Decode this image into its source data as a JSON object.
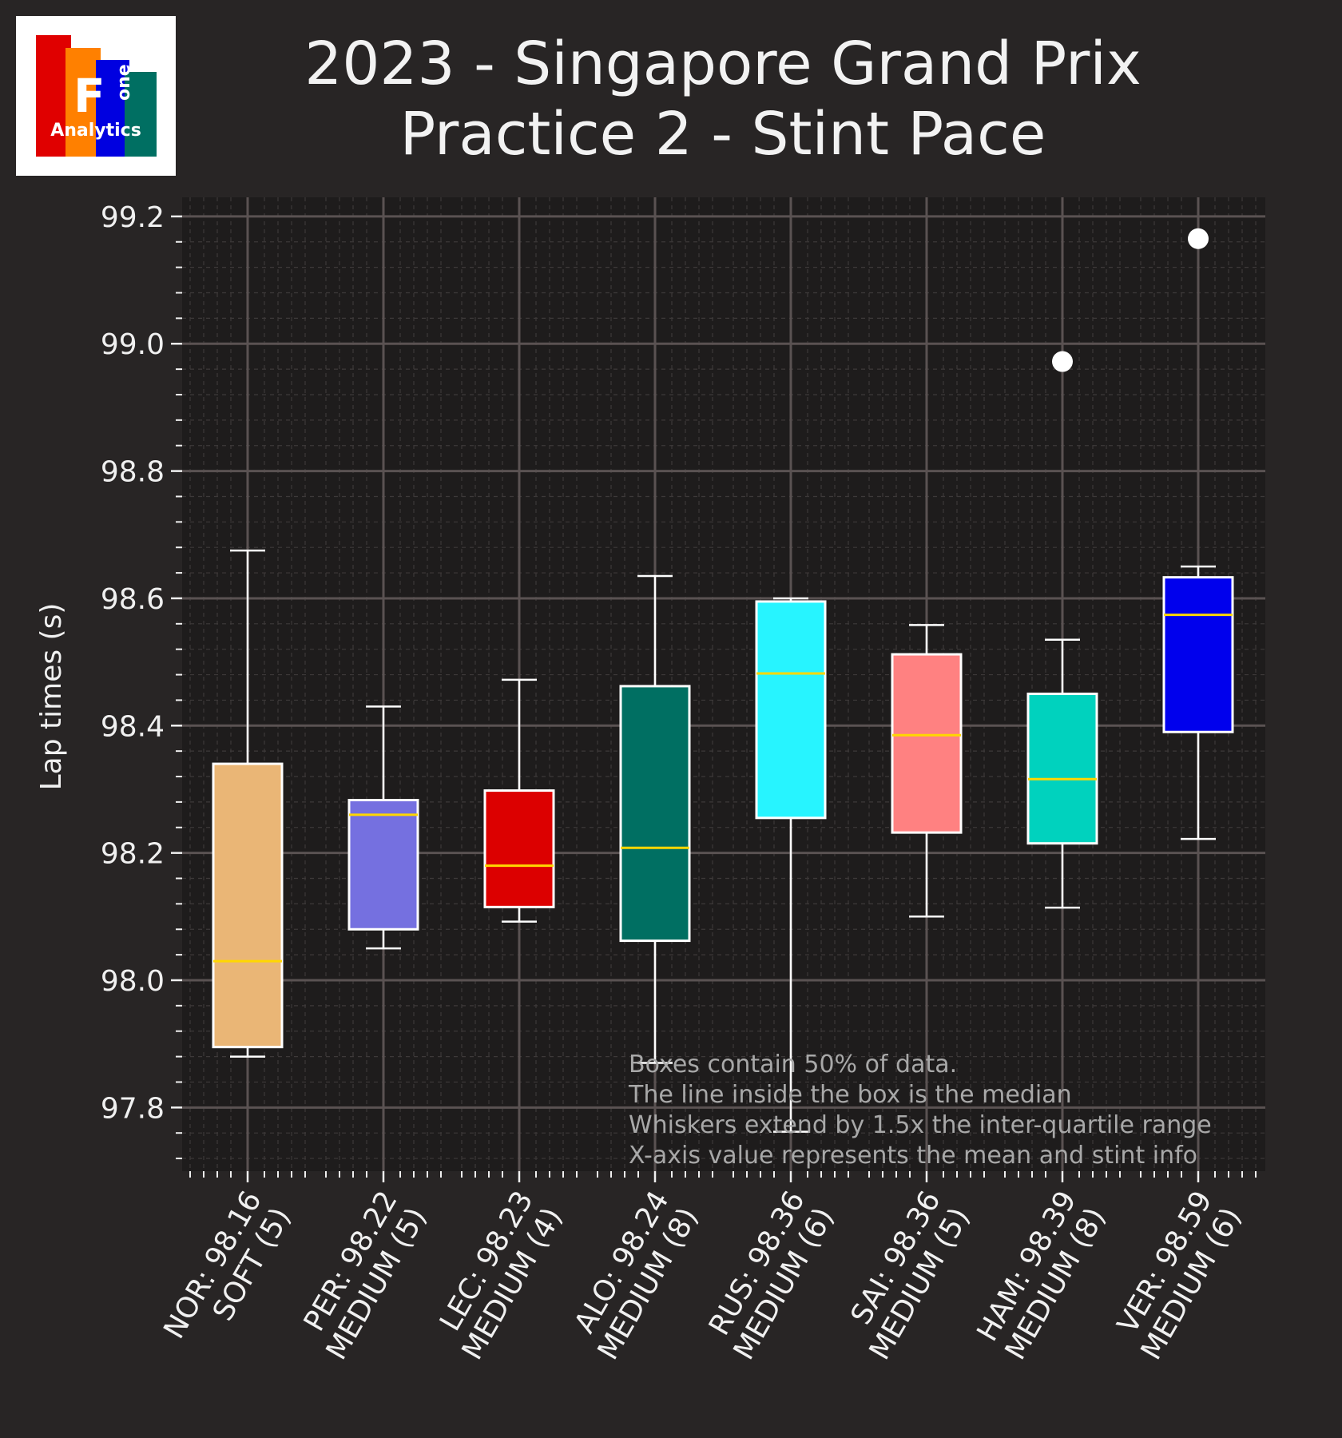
{
  "title_line1": "2023 - Singapore Grand Prix",
  "title_line2": "Practice 2 - Stint Pace",
  "logo": {
    "letter": "F",
    "word": "one",
    "brand": "Analytics"
  },
  "notes": [
    "Boxes contain 50% of data.",
    "The line inside the box is the median",
    "Whiskers extend by 1.5x the inter-quartile range",
    "X-axis value represents the mean and stint info"
  ],
  "chart_data": {
    "type": "box",
    "ylabel": "Lap times (s)",
    "ylim": [
      97.7,
      99.23
    ],
    "yticks": [
      "97.8",
      "98.0",
      "98.2",
      "98.4",
      "98.6",
      "98.8",
      "99.0",
      "99.2"
    ],
    "grid": true,
    "median_color": "#ffd700",
    "series": [
      {
        "label1": "NOR: 98.16",
        "label2": "SOFT (5)",
        "color": "#eab676",
        "whisker_low": 97.88,
        "q1": 97.895,
        "median": 98.03,
        "q3": 98.34,
        "whisker_high": 98.675,
        "outliers": []
      },
      {
        "label1": "PER: 98.22",
        "label2": "MEDIUM (5)",
        "color": "#7570e0",
        "whisker_low": 98.05,
        "q1": 98.08,
        "median": 98.26,
        "q3": 98.283,
        "whisker_high": 98.43,
        "outliers": []
      },
      {
        "label1": "LEC: 98.23",
        "label2": "MEDIUM (4)",
        "color": "#dc0000",
        "whisker_low": 98.092,
        "q1": 98.115,
        "median": 98.18,
        "q3": 98.298,
        "whisker_high": 98.472,
        "outliers": []
      },
      {
        "label1": "ALO: 98.24",
        "label2": "MEDIUM (8)",
        "color": "#006f62",
        "whisker_low": 97.87,
        "q1": 98.062,
        "median": 98.208,
        "q3": 98.462,
        "whisker_high": 98.635,
        "outliers": []
      },
      {
        "label1": "RUS: 98.36",
        "label2": "MEDIUM (6)",
        "color": "#27f4ff",
        "whisker_low": 97.762,
        "q1": 98.255,
        "median": 98.482,
        "q3": 98.595,
        "whisker_high": 98.6,
        "outliers": []
      },
      {
        "label1": "SAI: 98.36",
        "label2": "MEDIUM (5)",
        "color": "#ff8181",
        "whisker_low": 98.1,
        "q1": 98.232,
        "median": 98.385,
        "q3": 98.512,
        "whisker_high": 98.558,
        "outliers": []
      },
      {
        "label1": "HAM: 98.39",
        "label2": "MEDIUM (8)",
        "color": "#00d2be",
        "whisker_low": 98.114,
        "q1": 98.215,
        "median": 98.316,
        "q3": 98.45,
        "whisker_high": 98.535,
        "outliers": [
          98.972
        ]
      },
      {
        "label1": "VER: 98.59",
        "label2": "MEDIUM (6)",
        "color": "#0000ed",
        "whisker_low": 98.222,
        "q1": 98.39,
        "median": 98.574,
        "q3": 98.633,
        "whisker_high": 98.65,
        "outliers": [
          99.165
        ]
      }
    ]
  }
}
